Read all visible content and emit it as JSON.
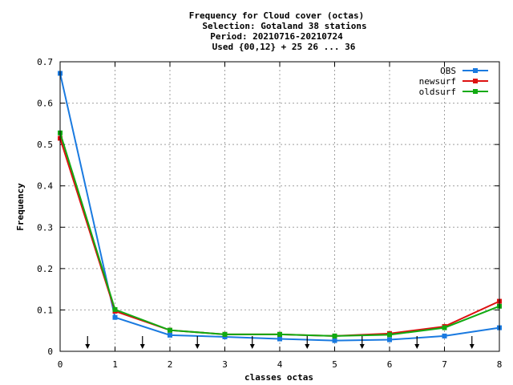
{
  "chart_data": {
    "type": "line",
    "title_lines": [
      "Frequency  for Cloud cover (octas)",
      "Selection: Gotaland     38 stations",
      "Period: 20210716-20210724",
      "Used {00,12} + 25 26 ... 36"
    ],
    "xlabel": "classes octas",
    "ylabel": "Frequency",
    "xlim": [
      0,
      8
    ],
    "ylim": [
      0,
      0.7
    ],
    "x_ticks": [
      "0",
      "1",
      "2",
      "3",
      "4",
      "5",
      "6",
      "7",
      "8"
    ],
    "y_ticks": [
      "0",
      "0.1",
      "0.2",
      "0.3",
      "0.4",
      "0.5",
      "0.6",
      "0.7"
    ],
    "grid": true,
    "legend_position": "top-right",
    "x": [
      0,
      1,
      2,
      3,
      4,
      5,
      6,
      7,
      8
    ],
    "series": [
      {
        "name": "OBS",
        "color": "#1a7ae0",
        "values": [
          0.672,
          0.082,
          0.039,
          0.035,
          0.03,
          0.026,
          0.028,
          0.037,
          0.057
        ]
      },
      {
        "name": "newsurf",
        "color": "#dd1111",
        "values": [
          0.515,
          0.097,
          0.051,
          0.041,
          0.041,
          0.037,
          0.043,
          0.06,
          0.121
        ]
      },
      {
        "name": "oldsurf",
        "color": "#11aa11",
        "values": [
          0.528,
          0.101,
          0.051,
          0.041,
          0.041,
          0.037,
          0.04,
          0.057,
          0.109
        ]
      }
    ],
    "arrow_markers_x": [
      0.5,
      1.5,
      2.5,
      3.5,
      4.5,
      5.5,
      6.5,
      7.5
    ]
  }
}
